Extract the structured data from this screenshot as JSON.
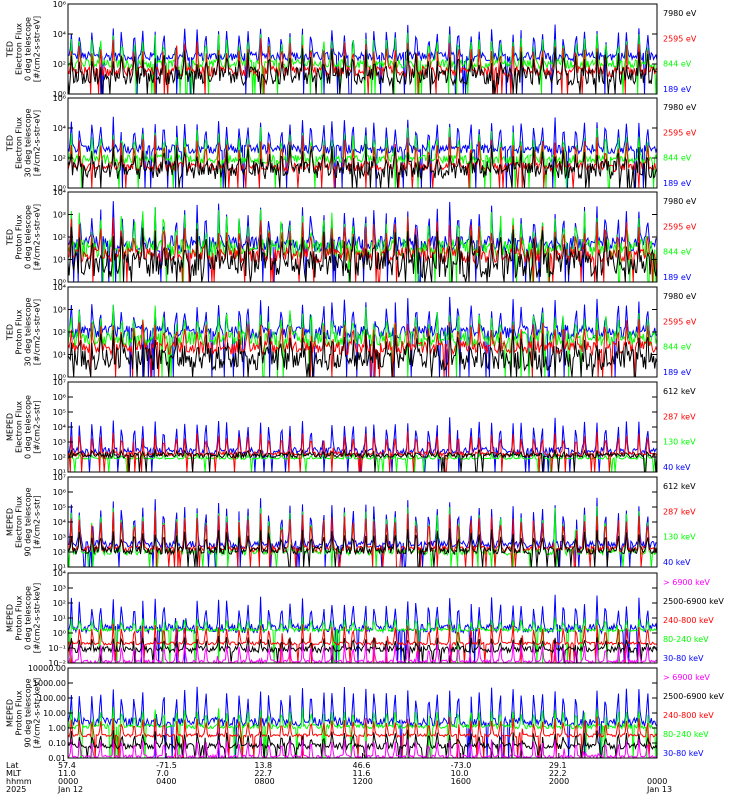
{
  "chart_data": [
    {
      "type": "line",
      "ylabel": [
        "TED",
        "Electron Flux",
        "0 deg telescope",
        "[#/cm2-s-str-eV]"
      ],
      "yticks": [
        "10⁶",
        "10⁴",
        "10²",
        "10⁰"
      ],
      "series": [
        {
          "name": "7980 eV",
          "color": "#000000",
          "base": 1.2,
          "peak": 2.6,
          "noise": 0.6
        },
        {
          "name": "2595 eV",
          "color": "#ff0000",
          "base": 1.5,
          "peak": 3.4,
          "noise": 0.35
        },
        {
          "name": "844 eV",
          "color": "#00ff00",
          "base": 2.0,
          "peak": 3.9,
          "noise": 0.3
        },
        {
          "name": "189 eV",
          "color": "#0000ff",
          "base": 2.5,
          "peak": 4.4,
          "noise": 0.3
        }
      ],
      "ymin": 0,
      "ymax": 6
    },
    {
      "type": "line",
      "ylabel": [
        "TED",
        "Electron Flux",
        "30 deg telescope",
        "[#/cm2-s-str-eV]"
      ],
      "yticks": [
        "10⁶",
        "10⁴",
        "10²",
        "10⁰"
      ],
      "series": [
        {
          "name": "7980 eV",
          "color": "#000000",
          "base": 1.2,
          "peak": 2.5,
          "noise": 0.6
        },
        {
          "name": "2595 eV",
          "color": "#ff0000",
          "base": 1.4,
          "peak": 3.3,
          "noise": 0.3
        },
        {
          "name": "844 eV",
          "color": "#00ff00",
          "base": 1.9,
          "peak": 3.8,
          "noise": 0.3
        },
        {
          "name": "189 eV",
          "color": "#0000ff",
          "base": 2.6,
          "peak": 4.5,
          "noise": 0.3
        }
      ],
      "ymin": 0,
      "ymax": 6
    },
    {
      "type": "line",
      "ylabel": [
        "TED",
        "Proton Flux",
        "0 deg telescope",
        "[#/cm2-s-str-eV]"
      ],
      "yticks": [
        "10⁴",
        "10³",
        "10²",
        "10¹",
        "10⁰"
      ],
      "series": [
        {
          "name": "7980 eV",
          "color": "#000000",
          "base": 0.8,
          "peak": 2.0,
          "noise": 0.6
        },
        {
          "name": "2595 eV",
          "color": "#ff0000",
          "base": 1.2,
          "peak": 2.6,
          "noise": 0.35
        },
        {
          "name": "844 eV",
          "color": "#00ff00",
          "base": 1.5,
          "peak": 3.0,
          "noise": 0.4
        },
        {
          "name": "189 eV",
          "color": "#0000ff",
          "base": 1.7,
          "peak": 3.3,
          "noise": 0.35
        }
      ],
      "ymin": 0,
      "ymax": 4
    },
    {
      "type": "line",
      "ylabel": [
        "TED",
        "Proton Flux",
        "30 deg telescope",
        "[#/cm2-s-str-eV]"
      ],
      "yticks": [
        "10⁴",
        "10³",
        "10²",
        "10¹",
        "10⁰"
      ],
      "series": [
        {
          "name": "7980 eV",
          "color": "#000000",
          "base": 0.8,
          "peak": 1.8,
          "noise": 0.5
        },
        {
          "name": "2595 eV",
          "color": "#ff0000",
          "base": 1.3,
          "peak": 2.4,
          "noise": 0.3
        },
        {
          "name": "844 eV",
          "color": "#00ff00",
          "base": 1.7,
          "peak": 2.9,
          "noise": 0.35
        },
        {
          "name": "189 eV",
          "color": "#0000ff",
          "base": 2.0,
          "peak": 3.3,
          "noise": 0.3
        }
      ],
      "ymin": 0,
      "ymax": 4
    },
    {
      "type": "line",
      "ylabel": [
        "MEPED",
        "Electron Flux",
        "0 deg telescope",
        "[#/cm2-s-str]"
      ],
      "yticks": [
        "10⁷",
        "10⁶",
        "10⁵",
        "10⁴",
        "10³",
        "10²",
        "10¹"
      ],
      "series": [
        {
          "name": "612 keV",
          "color": "#000000",
          "base": 2.1,
          "peak": 2.4,
          "noise": 0.15
        },
        {
          "name": "287 keV",
          "color": "#ff0000",
          "base": 2.2,
          "peak": 3.6,
          "noise": 0.15
        },
        {
          "name": "130 keV",
          "color": "#00ff00",
          "base": 1.9,
          "peak": 2.2,
          "noise": 0.05
        },
        {
          "name": "40 keV",
          "color": "#0000ff",
          "base": 2.4,
          "peak": 4.5,
          "noise": 0.25
        }
      ],
      "ymin": 1,
      "ymax": 7
    },
    {
      "type": "line",
      "ylabel": [
        "MEPED",
        "Electron Flux",
        "90 deg telescope",
        "[#/cm2-s-str]"
      ],
      "yticks": [
        "10⁷",
        "10⁶",
        "10⁵",
        "10⁴",
        "10³",
        "10²",
        "10¹"
      ],
      "series": [
        {
          "name": "612 keV",
          "color": "#000000",
          "base": 2.1,
          "peak": 3.4,
          "noise": 0.25
        },
        {
          "name": "287 keV",
          "color": "#ff0000",
          "base": 2.2,
          "peak": 4.6,
          "noise": 0.2
        },
        {
          "name": "130 keV",
          "color": "#00ff00",
          "base": 2.0,
          "peak": 4.9,
          "noise": 0.2
        },
        {
          "name": "40 keV",
          "color": "#0000ff",
          "base": 2.5,
          "peak": 5.4,
          "noise": 0.25
        }
      ],
      "ymin": 1,
      "ymax": 7
    },
    {
      "type": "line",
      "ylabel": [
        "MEPED",
        "Proton Flux",
        "0 deg telescope",
        "[#/cm2-s-str-keV]"
      ],
      "yticks": [
        "10⁴",
        "10³",
        "10²",
        "10¹",
        "10⁰",
        "10⁻¹",
        "10⁻²"
      ],
      "series": [
        {
          "name": "> 6900 keV",
          "color": "#ff00ff",
          "base": -1.9,
          "peak": -0.6,
          "noise": 0.1
        },
        {
          "name": "2500-6900 keV",
          "color": "#000000",
          "base": -1.1,
          "peak": -0.3,
          "noise": 0.2
        },
        {
          "name": "240-800 keV",
          "color": "#ff0000",
          "base": -0.7,
          "peak": 0.6,
          "noise": 0.1
        },
        {
          "name": "80-240 keV",
          "color": "#00ff00",
          "base": 0.2,
          "peak": 1.0,
          "noise": 0.1
        },
        {
          "name": "30-80 keV",
          "color": "#0000ff",
          "base": 0.3,
          "peak": 2.3,
          "noise": 0.3
        }
      ],
      "ymin": -2,
      "ymax": 4
    },
    {
      "type": "line",
      "ylabel": [
        "MEPED",
        "Proton Flux",
        "90 deg telescope",
        "[#/cm2-s-str-keV]"
      ],
      "yticks": [
        "10000.00",
        "1000.00",
        "100.00",
        "10.00",
        "1.00",
        "0.10",
        "0.01"
      ],
      "series": [
        {
          "name": "> 6900 keV",
          "color": "#ff00ff",
          "base": -1.9,
          "peak": -0.7,
          "noise": 0.1
        },
        {
          "name": "2500-6900 keV",
          "color": "#000000",
          "base": -1.2,
          "peak": -0.3,
          "noise": 0.2
        },
        {
          "name": "240-800 keV",
          "color": "#ff0000",
          "base": -0.5,
          "peak": 0.7,
          "noise": 0.1
        },
        {
          "name": "80-240 keV",
          "color": "#00ff00",
          "base": 0.1,
          "peak": 1.3,
          "noise": 0.15
        },
        {
          "name": "30-80 keV",
          "color": "#0000ff",
          "base": 0.4,
          "peak": 2.7,
          "noise": 0.3
        }
      ],
      "ymin": -2,
      "ymax": 4
    }
  ],
  "x_axis": {
    "row_labels": [
      "Lat",
      "MLT",
      "hhmm",
      "2025"
    ],
    "columns": [
      {
        "lat": "57.4",
        "mlt": "11.0",
        "hhmm": "0000",
        "date": "Jan 12"
      },
      {
        "lat": "-71.5",
        "mlt": "7.0",
        "hhmm": "0400",
        "date": ""
      },
      {
        "lat": "13.8",
        "mlt": "22.7",
        "hhmm": "0800",
        "date": ""
      },
      {
        "lat": "46.6",
        "mlt": "11.6",
        "hhmm": "1200",
        "date": ""
      },
      {
        "lat": "-73.0",
        "mlt": "10.0",
        "hhmm": "1600",
        "date": ""
      },
      {
        "lat": "29.1",
        "mlt": "22.2",
        "hhmm": "2000",
        "date": ""
      },
      {
        "lat": "",
        "mlt": "",
        "hhmm": "0000",
        "date": "Jan 13"
      }
    ]
  }
}
